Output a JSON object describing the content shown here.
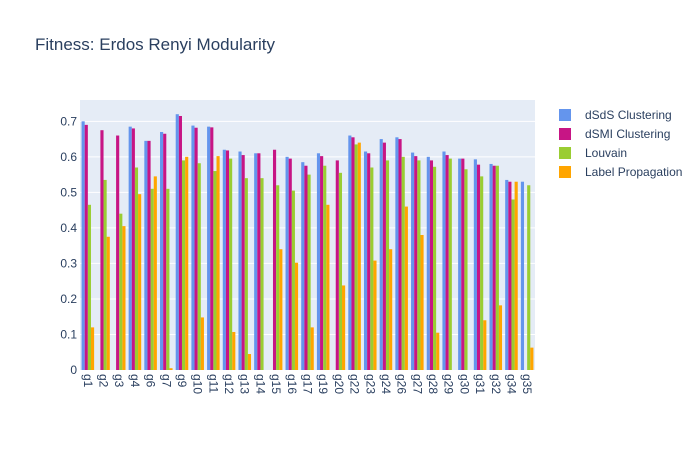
{
  "chart_data": {
    "type": "bar",
    "title": "Fitness: Erdos Renyi Modularity",
    "xlabel": "",
    "ylabel": "",
    "ylim": [
      0,
      0.76
    ],
    "yticks": [
      "0",
      "0.1",
      "0.2",
      "0.3",
      "0.4",
      "0.5",
      "0.6",
      "0.7"
    ],
    "grid": true,
    "legend_position": "right",
    "categories": [
      "g1",
      "g2",
      "g3",
      "g4",
      "g6",
      "g7",
      "g9",
      "g10",
      "g11",
      "g12",
      "g13",
      "g14",
      "g15",
      "g16",
      "g17",
      "g19",
      "g20",
      "g22",
      "g23",
      "g24",
      "g26",
      "g27",
      "g28",
      "g29",
      "g30",
      "g31",
      "g32",
      "g34",
      "g35"
    ],
    "series": [
      {
        "name": "dSdS Clustering",
        "color": "#6495ed",
        "values": [
          0.7,
          0,
          0,
          0.685,
          0.645,
          0.67,
          0.72,
          0.688,
          0.685,
          0.62,
          0.615,
          0.61,
          0,
          0.6,
          0.585,
          0.61,
          0,
          0.66,
          0.615,
          0.65,
          0.655,
          0.612,
          0.6,
          0.615,
          0.595,
          0.593,
          0.58,
          0.535,
          0.53
        ]
      },
      {
        "name": "dSMI Clustering",
        "color": "#c71585",
        "values": [
          0.69,
          0.675,
          0.66,
          0.68,
          0.645,
          0.665,
          0.715,
          0.682,
          0.683,
          0.618,
          0.605,
          0.61,
          0.62,
          0.595,
          0.575,
          0.602,
          0.59,
          0.655,
          0.61,
          0.64,
          0.65,
          0.602,
          0.59,
          0.605,
          0.595,
          0.578,
          0.575,
          0.53,
          0
        ]
      },
      {
        "name": "Louvain",
        "color": "#9acd32",
        "values": [
          0.465,
          0.535,
          0.44,
          0.57,
          0.51,
          0.51,
          0.59,
          0.582,
          0.56,
          0.595,
          0.54,
          0.54,
          0.52,
          0.505,
          0.55,
          0.575,
          0.555,
          0.635,
          0.57,
          0.59,
          0.6,
          0.59,
          0.572,
          0.595,
          0.565,
          0.545,
          0.575,
          0.48,
          0.52
        ]
      },
      {
        "name": "Label Propagation",
        "color": "#ffa500",
        "values": [
          0.12,
          0.375,
          0.405,
          0.495,
          0.545,
          0.005,
          0.6,
          0.148,
          0.602,
          0.107,
          0.045,
          0,
          0.34,
          0.302,
          0.12,
          0.465,
          0.238,
          0.64,
          0.308,
          0.34,
          0.46,
          0.38,
          0.105,
          0,
          0,
          0.14,
          0.182,
          0.53,
          0.063
        ]
      }
    ]
  }
}
